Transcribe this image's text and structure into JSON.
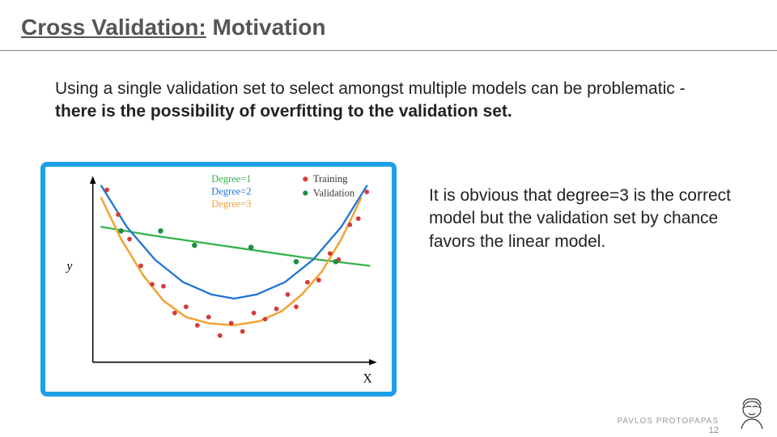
{
  "title": {
    "underlined": "Cross Validation:",
    "rest": " Motivation",
    "color": "#555555"
  },
  "intro": {
    "plain": "Using a single validation set to select amongst multiple models can be problematic - ",
    "bold": "there is the possibility of overfitting to the validation set."
  },
  "sidetext": "It is obvious that degree=3 is the correct model but the validation set by chance favors the linear model.",
  "footer": {
    "author": "PAVLOS PROTOPAPAS",
    "page": "12"
  },
  "chart": {
    "border_color": "#1ea0e6",
    "background": "#ffffff",
    "axes": {
      "xlabel": "X",
      "ylabel": "y",
      "axis_color": "#000000",
      "label_fontsize": 16,
      "label_color": "#000000",
      "xlim": [
        0,
        10
      ],
      "ylim": [
        -3,
        6
      ]
    },
    "legend_degree": {
      "items": [
        {
          "label": "Degree=1",
          "color": "#35b24a"
        },
        {
          "label": "Degree=2",
          "color": "#1e74d6"
        },
        {
          "label": "Degree=3",
          "color": "#f2a233"
        }
      ],
      "fontsize": 13
    },
    "legend_data": {
      "items": [
        {
          "label": "Training",
          "color": "#d63a3a",
          "marker": "circle"
        },
        {
          "label": "Validation",
          "color": "#1a8f3c",
          "marker": "circle"
        }
      ],
      "fontsize": 13
    },
    "curves": {
      "degree1": {
        "color": "#35b24a",
        "width": 2.4,
        "dash": "none",
        "points": [
          [
            0.3,
            3.6
          ],
          [
            2.0,
            3.2
          ],
          [
            4.0,
            2.8
          ],
          [
            6.0,
            2.4
          ],
          [
            8.0,
            2.0
          ],
          [
            9.8,
            1.7
          ]
        ]
      },
      "degree2": {
        "color": "#1e74d6",
        "width": 2.4,
        "dash": "none",
        "points": [
          [
            0.3,
            5.6
          ],
          [
            1.2,
            3.6
          ],
          [
            2.2,
            2.0
          ],
          [
            3.2,
            0.9
          ],
          [
            4.2,
            0.3
          ],
          [
            5.0,
            0.1
          ],
          [
            5.8,
            0.3
          ],
          [
            6.8,
            0.9
          ],
          [
            7.8,
            2.0
          ],
          [
            8.8,
            3.6
          ],
          [
            9.7,
            5.6
          ]
        ]
      },
      "degree3": {
        "color": "#f2a233",
        "width": 2.6,
        "dash": "none",
        "points": [
          [
            0.3,
            5.0
          ],
          [
            1.0,
            3.0
          ],
          [
            1.8,
            1.2
          ],
          [
            2.5,
            0.0
          ],
          [
            3.3,
            -0.8
          ],
          [
            4.1,
            -1.1
          ],
          [
            5.0,
            -1.2
          ],
          [
            5.9,
            -1.0
          ],
          [
            6.7,
            -0.5
          ],
          [
            7.4,
            0.3
          ],
          [
            8.1,
            1.4
          ],
          [
            8.8,
            3.0
          ],
          [
            9.5,
            5.0
          ]
        ]
      }
    },
    "scatter": {
      "training": {
        "color": "#d63a3a",
        "size": 3.0,
        "points": [
          [
            0.5,
            5.4
          ],
          [
            0.9,
            4.2
          ],
          [
            1.3,
            3.0
          ],
          [
            1.7,
            1.7
          ],
          [
            2.1,
            0.8
          ],
          [
            2.5,
            0.7
          ],
          [
            2.9,
            -0.6
          ],
          [
            3.3,
            -0.3
          ],
          [
            3.7,
            -1.2
          ],
          [
            4.1,
            -0.8
          ],
          [
            4.5,
            -1.7
          ],
          [
            4.9,
            -1.1
          ],
          [
            5.3,
            -1.5
          ],
          [
            5.7,
            -0.6
          ],
          [
            6.1,
            -0.9
          ],
          [
            6.5,
            -0.4
          ],
          [
            6.9,
            0.3
          ],
          [
            7.2,
            -0.3
          ],
          [
            7.6,
            0.9
          ],
          [
            8.0,
            1.0
          ],
          [
            8.4,
            2.3
          ],
          [
            8.7,
            2.0
          ],
          [
            9.1,
            3.7
          ],
          [
            9.4,
            4.0
          ],
          [
            9.7,
            5.3
          ]
        ]
      },
      "validation": {
        "color": "#1a8f3c",
        "size": 3.4,
        "points": [
          [
            1.0,
            3.4
          ],
          [
            2.4,
            3.4
          ],
          [
            3.6,
            2.7
          ],
          [
            5.6,
            2.6
          ],
          [
            7.2,
            1.9
          ],
          [
            8.6,
            1.9
          ]
        ]
      }
    }
  }
}
